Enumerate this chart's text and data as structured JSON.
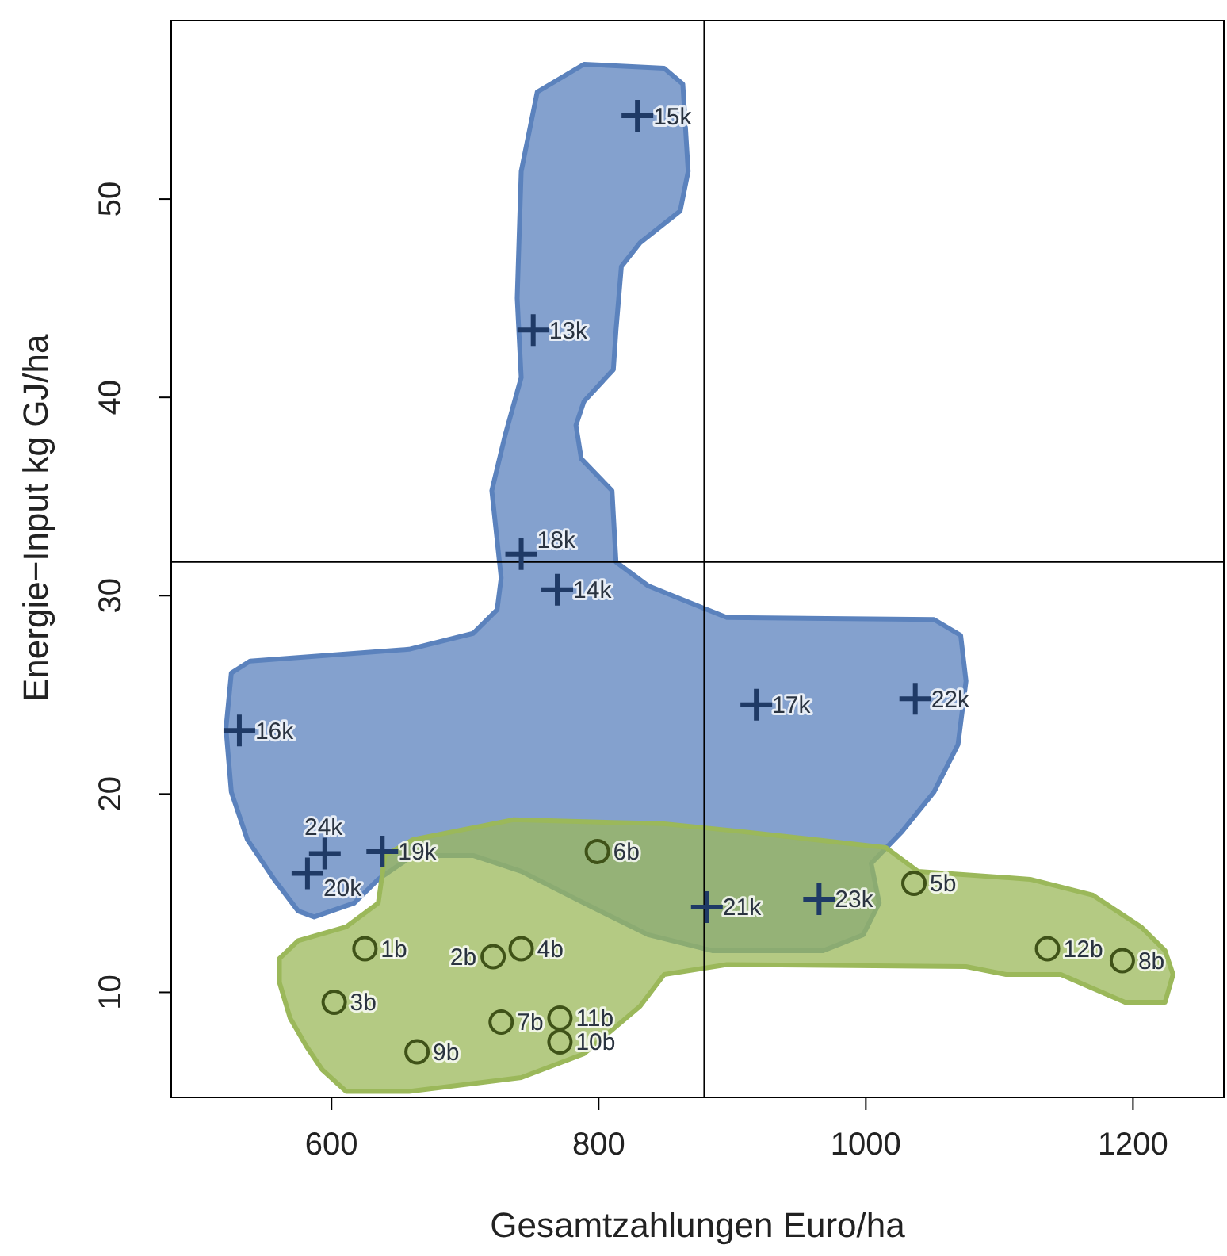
{
  "chart_data": {
    "type": "scatter",
    "xlabel": "Gesamtzahlungen Euro/ha",
    "ylabel": "Energie−Input kg GJ/ha",
    "xlim": [
      480,
      1268
    ],
    "ylim": [
      4.7,
      59
    ],
    "xticks": [
      600,
      800,
      1000,
      1200
    ],
    "yticks": [
      10,
      20,
      30,
      40,
      50
    ],
    "grid": false,
    "legend": false,
    "ref_lines": [
      {
        "axis": "x",
        "value": 879,
        "color": "#000000"
      },
      {
        "axis": "y",
        "value": 31.7,
        "color": "#000000"
      }
    ],
    "series": [
      {
        "type": "area",
        "color": "#5b82bd",
        "x": [
          789,
          849,
          863,
          867,
          861,
          831,
          817,
          813,
          811,
          789,
          783,
          787,
          810,
          813,
          837,
          870,
          896,
          1051,
          1071,
          1075,
          1069,
          1051,
          1027,
          1004,
          1010,
          998,
          968,
          885,
          837,
          789,
          742,
          706,
          661,
          635,
          617,
          587,
          575,
          557,
          537,
          525,
          521,
          525,
          539,
          658,
          706,
          724,
          727,
          720,
          730,
          742,
          739,
          742,
          754
        ],
        "values": [
          56.8,
          56.6,
          55.8,
          51.4,
          49.4,
          47.8,
          46.6,
          43.4,
          41.4,
          39.8,
          38.6,
          36.9,
          35.3,
          31.7,
          30.5,
          29.6,
          28.9,
          28.8,
          28.0,
          25.7,
          22.5,
          20.1,
          18.1,
          16.5,
          14.5,
          12.9,
          12.1,
          12.1,
          12.9,
          14.5,
          16.1,
          16.9,
          16.9,
          15.7,
          14.5,
          13.8,
          14.1,
          15.7,
          17.7,
          20.1,
          23.3,
          26.1,
          26.7,
          27.3,
          28.1,
          29.3,
          30.9,
          35.3,
          38.1,
          41.0,
          45.0,
          51.4,
          55.4
        ]
      },
      {
        "type": "area",
        "color": "#9bb85a",
        "x": [
          640,
          661,
          736,
          849,
          908,
          1015,
          1039,
          1123,
          1170,
          1206,
          1224,
          1230,
          1224,
          1194,
          1146,
          1105,
          1075,
          896,
          849,
          831,
          789,
          742,
          658,
          611,
          593,
          581,
          569,
          561,
          561,
          575,
          611,
          635
        ],
        "values": [
          16.9,
          17.7,
          18.7,
          18.5,
          18.1,
          17.3,
          16.1,
          15.7,
          14.9,
          13.3,
          12.1,
          10.9,
          9.5,
          9.5,
          10.9,
          10.9,
          11.3,
          11.4,
          10.9,
          9.3,
          6.9,
          5.7,
          5.0,
          5.0,
          6.1,
          7.3,
          8.7,
          10.5,
          11.7,
          12.6,
          13.3,
          14.5
        ]
      },
      {
        "marker": "cross",
        "color": "#1f3a66",
        "x": [
          829,
          751,
          742,
          769,
          531,
          582,
          595,
          638,
          918,
          1037,
          881,
          965
        ],
        "values": [
          54.2,
          43.4,
          32.1,
          30.3,
          23.2,
          16.0,
          17.0,
          17.1,
          24.5,
          24.8,
          14.3,
          14.7
        ]
      },
      {
        "marker": "circle",
        "color": "#3f5218",
        "x": [
          625,
          721,
          602,
          742,
          1036,
          799,
          727,
          1192,
          664,
          771,
          771,
          1136
        ],
        "values": [
          12.2,
          11.8,
          9.5,
          12.2,
          15.5,
          17.1,
          8.5,
          11.6,
          7.0,
          7.5,
          8.7,
          12.2
        ]
      }
    ],
    "annotations": [
      {
        "text": "15k",
        "x": 829,
        "y": 54.2
      },
      {
        "text": "13k",
        "x": 751,
        "y": 43.4
      },
      {
        "text": "18k",
        "x": 742,
        "y": 32.1
      },
      {
        "text": "14k",
        "x": 769,
        "y": 30.3
      },
      {
        "text": "16k",
        "x": 531,
        "y": 23.2
      },
      {
        "text": "20k",
        "x": 582,
        "y": 16.0
      },
      {
        "text": "24k",
        "x": 595,
        "y": 17.0
      },
      {
        "text": "19k",
        "x": 638,
        "y": 17.1
      },
      {
        "text": "17k",
        "x": 918,
        "y": 24.5
      },
      {
        "text": "22k",
        "x": 1037,
        "y": 24.8
      },
      {
        "text": "21k",
        "x": 881,
        "y": 14.3
      },
      {
        "text": "23k",
        "x": 965,
        "y": 14.7
      },
      {
        "text": "1b",
        "x": 625,
        "y": 12.2
      },
      {
        "text": "2b",
        "x": 721,
        "y": 11.8
      },
      {
        "text": "3b",
        "x": 602,
        "y": 9.5
      },
      {
        "text": "4b",
        "x": 742,
        "y": 12.2
      },
      {
        "text": "5b",
        "x": 1036,
        "y": 15.5
      },
      {
        "text": "6b",
        "x": 799,
        "y": 17.1
      },
      {
        "text": "7b",
        "x": 727,
        "y": 8.5
      },
      {
        "text": "8b",
        "x": 1192,
        "y": 11.6
      },
      {
        "text": "9b",
        "x": 664,
        "y": 7.0
      },
      {
        "text": "10b",
        "x": 771,
        "y": 7.5
      },
      {
        "text": "11b",
        "x": 771,
        "y": 8.7
      },
      {
        "text": "12b",
        "x": 1136,
        "y": 12.2
      }
    ]
  }
}
